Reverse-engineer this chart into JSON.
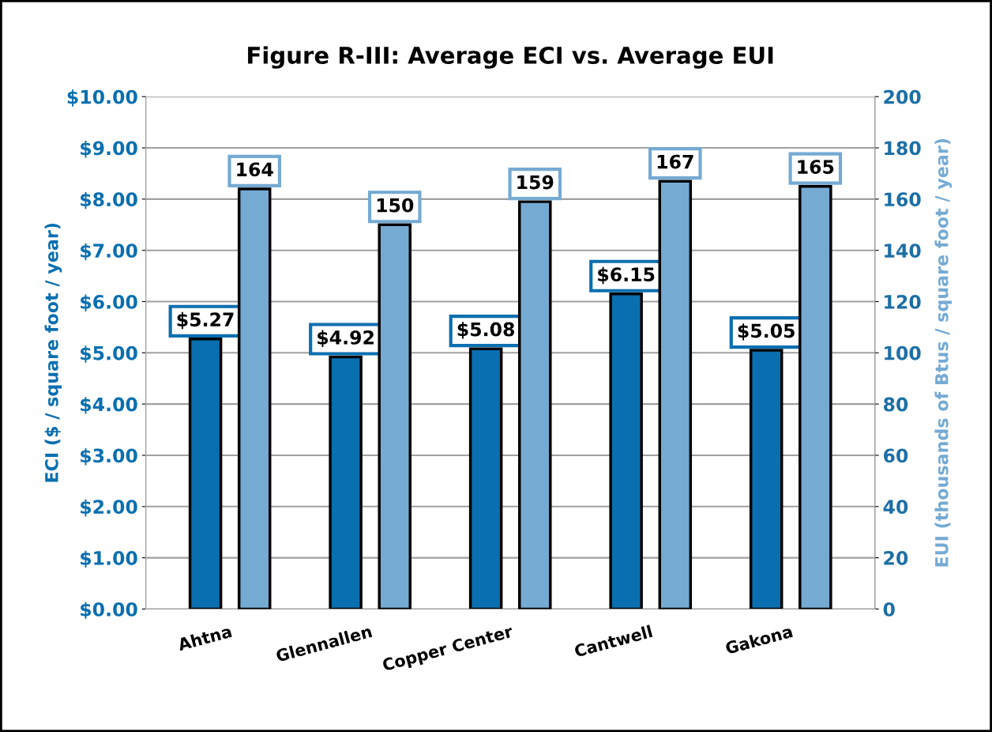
{
  "chart_data": {
    "type": "bar",
    "title": "Figure R-III: Average ECI vs. Average EUI",
    "ylabel": "ECI ($ / square foot / year)",
    "y2label": "EUI (thousands of Btus / square foot / year)",
    "categories": [
      "Ahtna",
      "Glennallen",
      "Copper Center",
      "Cantwell",
      "Gakona"
    ],
    "series": [
      {
        "color": "#0a6fb0",
        "values": [
          5.27,
          4.92,
          5.08,
          6.15,
          5.05
        ],
        "value_labels": [
          "$5.27",
          "$4.92",
          "$5.08",
          "$6.15",
          "$5.05"
        ]
      },
      {
        "color": "#75aad3",
        "axis": "y2",
        "values": [
          164,
          150,
          159,
          167,
          165
        ],
        "value_labels": [
          "164",
          "150",
          "159",
          "167",
          "165"
        ]
      }
    ],
    "ylim": [
      0,
      10
    ],
    "yticks": [
      {
        "value": 0,
        "label": "$0.00"
      },
      {
        "value": 1,
        "label": "$1.00"
      },
      {
        "value": 2,
        "label": "$2.00"
      },
      {
        "value": 3,
        "label": "$3.00"
      },
      {
        "value": 4,
        "label": "$4.00"
      },
      {
        "value": 5,
        "label": "$5.00"
      },
      {
        "value": 6,
        "label": "$6.00"
      },
      {
        "value": 7,
        "label": "$7.00"
      },
      {
        "value": 8,
        "label": "$8.00"
      },
      {
        "value": 9,
        "label": "$9.00"
      },
      {
        "value": 10,
        "label": "$10.00"
      }
    ],
    "y2lim": [
      0,
      200
    ],
    "y2ticks": [
      0,
      20,
      40,
      60,
      80,
      100,
      120,
      140,
      160,
      180,
      200
    ],
    "grid": "y"
  }
}
